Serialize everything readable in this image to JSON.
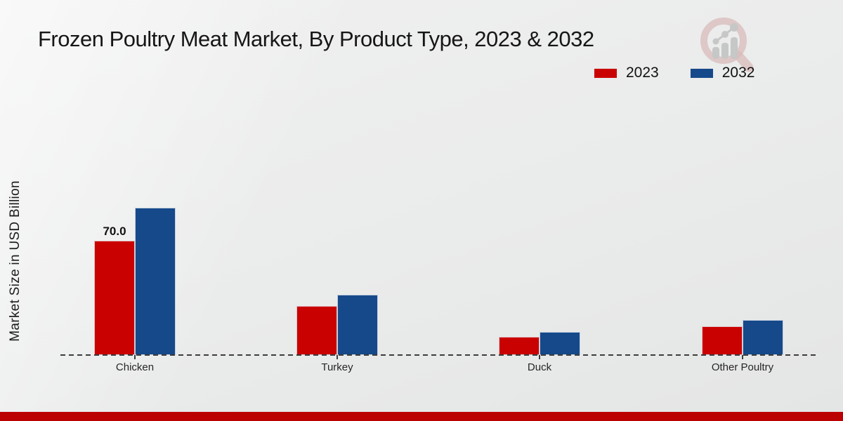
{
  "title": "Frozen Poultry Meat Market, By Product Type, 2023 & 2032",
  "y_axis_label": "Market Size in USD Billion",
  "legend": {
    "items": [
      {
        "label": "2023",
        "color": "#c90101"
      },
      {
        "label": "2032",
        "color": "#15498a"
      }
    ]
  },
  "colors": {
    "accent_red": "#c90101",
    "accent_blue": "#15498a",
    "bottom_stripe": "#bb0101",
    "axis_line": "#3c3c3c"
  },
  "logo": {
    "name": "magnifier-growth-chart-logo"
  },
  "chart_data": {
    "type": "bar",
    "title": "Frozen Poultry Meat Market, By Product Type, 2023 & 2032",
    "categories": [
      "Chicken",
      "Turkey",
      "Duck",
      "Other Poultry"
    ],
    "series": [
      {
        "name": "2023",
        "color": "#c90101",
        "values": [
          70.0,
          30.0,
          11.0,
          17.5
        ]
      },
      {
        "name": "2032",
        "color": "#15498a",
        "values": [
          90.0,
          37.0,
          14.0,
          21.5
        ]
      }
    ],
    "xlabel": "",
    "ylabel": "Market Size in USD Billion",
    "ylim": [
      0,
      95
    ],
    "grid": false,
    "y_axis_ticks_visible": false,
    "legend_position": "top-right",
    "data_labels": [
      {
        "category_index": 0,
        "series_index": 0,
        "text": "70.0"
      }
    ]
  }
}
